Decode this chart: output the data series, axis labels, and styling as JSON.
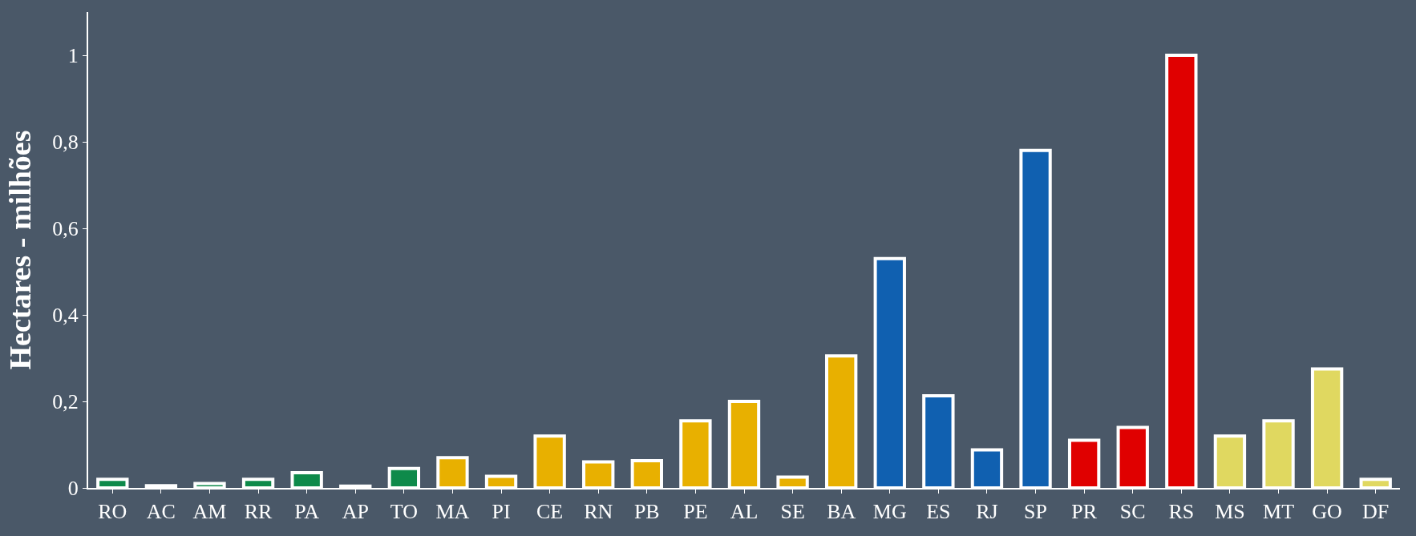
{
  "chart_data": {
    "type": "bar",
    "ylabel": "Hectares - milhões",
    "categories": [
      "RO",
      "AC",
      "AM",
      "RR",
      "PA",
      "AP",
      "TO",
      "MA",
      "PI",
      "CE",
      "RN",
      "PB",
      "PE",
      "AL",
      "SE",
      "BA",
      "MG",
      "ES",
      "RJ",
      "SP",
      "PR",
      "SC",
      "RS",
      "MS",
      "MT",
      "GO",
      "DF"
    ],
    "values": [
      0.02,
      0.005,
      0.01,
      0.02,
      0.035,
      0.004,
      0.045,
      0.07,
      0.027,
      0.12,
      0.06,
      0.063,
      0.155,
      0.2,
      0.025,
      0.305,
      0.53,
      0.213,
      0.088,
      0.78,
      0.11,
      0.14,
      1.0,
      0.12,
      0.155,
      0.275,
      0.02
    ],
    "colors": [
      "#0e8a4a",
      "#0e8a4a",
      "#0e8a4a",
      "#0e8a4a",
      "#0e8a4a",
      "#0e8a4a",
      "#0e8a4a",
      "#e8b000",
      "#e8b000",
      "#e8b000",
      "#e8b000",
      "#e8b000",
      "#e8b000",
      "#e8b000",
      "#e8b000",
      "#e8b000",
      "#1060b0",
      "#1060b0",
      "#1060b0",
      "#1060b0",
      "#e00000",
      "#e00000",
      "#e00000",
      "#e0d860",
      "#e0d860",
      "#e0d860",
      "#e0d860"
    ],
    "ylim": [
      0,
      1.1
    ],
    "yticks": [
      0,
      {
        "value": 0.2,
        "label": "0,2"
      },
      {
        "value": 0.4,
        "label": "0,4"
      },
      {
        "value": 0.6,
        "label": "0,6"
      },
      {
        "value": 0.8,
        "label": "0,8"
      },
      1
    ],
    "grid": false
  }
}
